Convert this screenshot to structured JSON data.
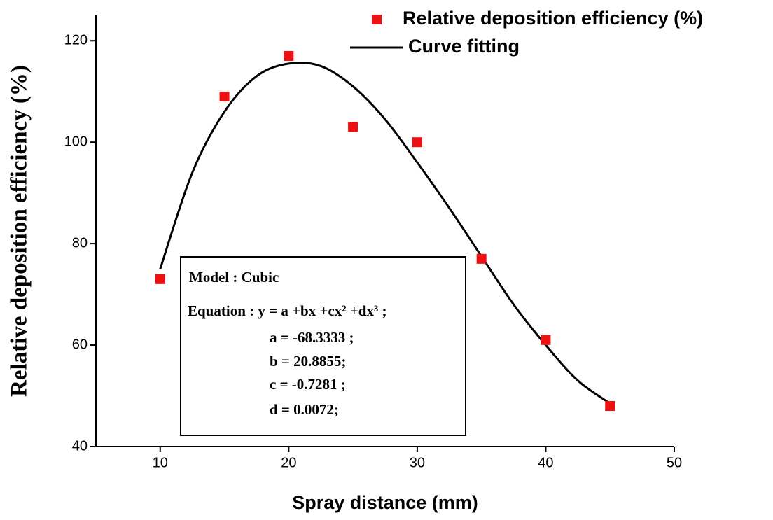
{
  "chart_data": {
    "type": "scatter",
    "xlabel": "Spray distance (mm)",
    "ylabel": "Relative deposition efficiency (%)",
    "xlim": [
      5,
      50
    ],
    "xticks": [
      10,
      20,
      30,
      40,
      50
    ],
    "ylim": [
      40,
      125
    ],
    "yticks": [
      40,
      60,
      80,
      100,
      120
    ],
    "series": [
      {
        "name": "Relative deposition efficiency (%)",
        "color": "#ee1111",
        "kind": "scatter",
        "x": [
          10,
          15,
          20,
          25,
          30,
          35,
          40,
          45
        ],
        "values": [
          73,
          109,
          117,
          103,
          100,
          77,
          61,
          48
        ]
      },
      {
        "name": "Curve fitting",
        "color": "#000000",
        "kind": "line",
        "x": [
          10,
          12.5,
          15,
          17.5,
          20,
          22.5,
          25,
          27.5,
          30,
          32.5,
          35,
          37.5,
          40,
          42.5,
          45
        ],
        "values": [
          75,
          94,
          106,
          113,
          115.5,
          115,
          111,
          104.5,
          96,
          87,
          77.5,
          68,
          60,
          53,
          48.5
        ]
      }
    ],
    "annotation": [
      "Model : Cubic",
      "Equation : y = a +bx +cx² +dx³ ;",
      "a = -68.3333 ;",
      "b = 20.8855;",
      "c = -0.7281 ;",
      "d = 0.0072;"
    ]
  }
}
